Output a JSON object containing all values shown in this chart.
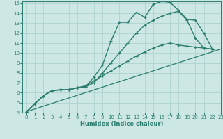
{
  "xlabel": "Humidex (Indice chaleur)",
  "xlim": [
    -0.5,
    23
  ],
  "ylim": [
    4,
    15.2
  ],
  "xticks": [
    0,
    1,
    2,
    3,
    4,
    5,
    6,
    7,
    8,
    9,
    10,
    11,
    12,
    13,
    14,
    15,
    16,
    17,
    18,
    19,
    20,
    21,
    22,
    23
  ],
  "yticks": [
    4,
    5,
    6,
    7,
    8,
    9,
    10,
    11,
    12,
    13,
    14,
    15
  ],
  "background_color": "#cde8e4",
  "grid_color": "#aacfcb",
  "line_color": "#2a7d6f",
  "curve1_x": [
    0,
    1,
    2,
    3,
    4,
    5,
    6,
    7,
    8,
    9,
    10,
    11,
    12,
    13,
    14,
    15,
    16,
    17,
    18,
    19,
    20,
    21,
    22,
    23
  ],
  "curve1_y": [
    4.1,
    4.9,
    5.7,
    6.2,
    6.3,
    6.3,
    6.5,
    6.6,
    7.6,
    8.8,
    11.2,
    13.1,
    13.1,
    14.1,
    13.6,
    14.9,
    15.2,
    15.1,
    14.3,
    13.4,
    13.3,
    12.0,
    10.4,
    null
  ],
  "curve2_x": [
    0,
    1,
    2,
    3,
    4,
    5,
    6,
    7,
    8,
    9,
    10,
    11,
    12,
    13,
    14,
    15,
    16,
    17,
    18,
    19,
    20,
    21,
    22,
    23
  ],
  "curve2_y": [
    4.1,
    4.9,
    5.7,
    6.2,
    6.3,
    6.3,
    6.5,
    6.6,
    7.0,
    8.0,
    9.0,
    10.0,
    11.0,
    12.0,
    12.8,
    13.3,
    13.7,
    14.0,
    14.2,
    13.3,
    11.5,
    10.5,
    10.4,
    null
  ],
  "curve3_x": [
    0,
    1,
    2,
    3,
    4,
    5,
    6,
    7,
    8,
    9,
    10,
    11,
    12,
    13,
    14,
    15,
    16,
    17,
    18,
    19,
    20,
    21,
    22,
    23
  ],
  "curve3_y": [
    4.1,
    4.9,
    5.7,
    6.2,
    6.3,
    6.3,
    6.5,
    6.7,
    7.2,
    7.7,
    8.2,
    8.7,
    9.2,
    9.7,
    10.1,
    10.5,
    10.8,
    11.0,
    10.8,
    10.7,
    10.6,
    10.5,
    10.4,
    null
  ],
  "curve4_x": [
    0,
    23
  ],
  "curve4_y": [
    4.1,
    10.4
  ]
}
